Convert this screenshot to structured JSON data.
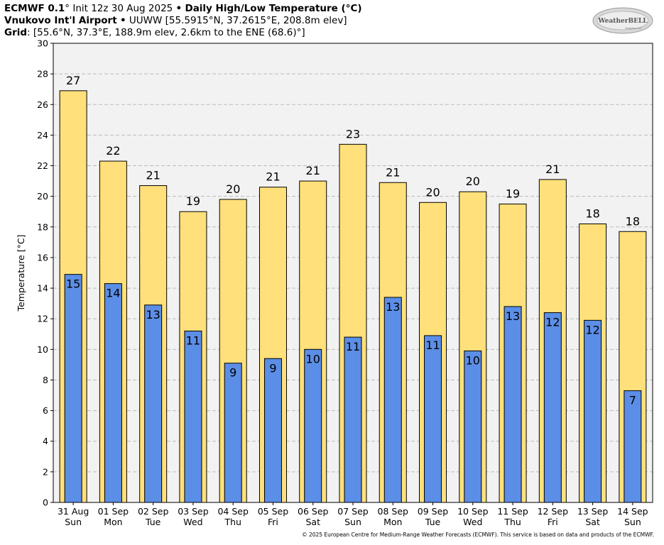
{
  "header": {
    "line1": {
      "model": "ECMWF 0.1",
      "deg": "°",
      "init": "Init 12z 30 Aug 2025",
      "bullet": "•",
      "product": "Daily High/Low Temperature (°C)"
    },
    "line2": {
      "station": "Vnukovo Int'l Airport",
      "bullet": "•",
      "details": "UUWW [55.5915°N, 37.2615°E, 208.8m elev]"
    },
    "line3": {
      "label": "Grid",
      "details": ": [55.6°N, 37.3°E, 188.9m elev, 2.6km to the ENE (68.6)°]"
    }
  },
  "logo": {
    "text": "WeatherBELL",
    "subtext": "Analytics LLC",
    "icon": "weatherbell-logo"
  },
  "footer": {
    "copyright": "© 2025 European Centre for Medium-Range Weather Forecasts (ECMWF). This service is based on data and products of the ECMWF."
  },
  "colors": {
    "high": "#FFE07A",
    "low": "#5B8EE6",
    "plot_bg": "#F2F2F2",
    "grid": "#BBBBBB"
  },
  "chart_data": {
    "type": "bar",
    "ylabel": "Temperature [°C]",
    "ylim": [
      0,
      30
    ],
    "yticks": [
      0,
      2,
      4,
      6,
      8,
      10,
      12,
      14,
      16,
      18,
      20,
      22,
      24,
      26,
      28,
      30
    ],
    "grid": true,
    "categories": [
      {
        "date": "31 Aug",
        "day": "Sun"
      },
      {
        "date": "01 Sep",
        "day": "Mon"
      },
      {
        "date": "02 Sep",
        "day": "Tue"
      },
      {
        "date": "03 Sep",
        "day": "Wed"
      },
      {
        "date": "04 Sep",
        "day": "Thu"
      },
      {
        "date": "05 Sep",
        "day": "Fri"
      },
      {
        "date": "06 Sep",
        "day": "Sat"
      },
      {
        "date": "07 Sep",
        "day": "Sun"
      },
      {
        "date": "08 Sep",
        "day": "Mon"
      },
      {
        "date": "09 Sep",
        "day": "Tue"
      },
      {
        "date": "10 Sep",
        "day": "Wed"
      },
      {
        "date": "11 Sep",
        "day": "Thu"
      },
      {
        "date": "12 Sep",
        "day": "Fri"
      },
      {
        "date": "13 Sep",
        "day": "Sat"
      },
      {
        "date": "14 Sep",
        "day": "Sun"
      }
    ],
    "high": [
      26.9,
      22.3,
      20.7,
      19.0,
      19.8,
      20.6,
      21.0,
      23.4,
      20.9,
      19.6,
      20.3,
      19.5,
      21.1,
      18.2,
      17.7
    ],
    "high_labels": [
      "27",
      "22",
      "21",
      "19",
      "20",
      "21",
      "21",
      "23",
      "21",
      "20",
      "20",
      "19",
      "21",
      "18",
      "18"
    ],
    "low": [
      14.9,
      14.3,
      12.9,
      11.2,
      9.1,
      9.4,
      10.0,
      10.8,
      13.4,
      10.9,
      9.9,
      12.8,
      12.4,
      11.9,
      7.3
    ],
    "low_labels": [
      "15",
      "14",
      "13",
      "11",
      "9",
      "9",
      "10",
      "11",
      "13",
      "11",
      "10",
      "13",
      "12",
      "12",
      "7"
    ]
  }
}
